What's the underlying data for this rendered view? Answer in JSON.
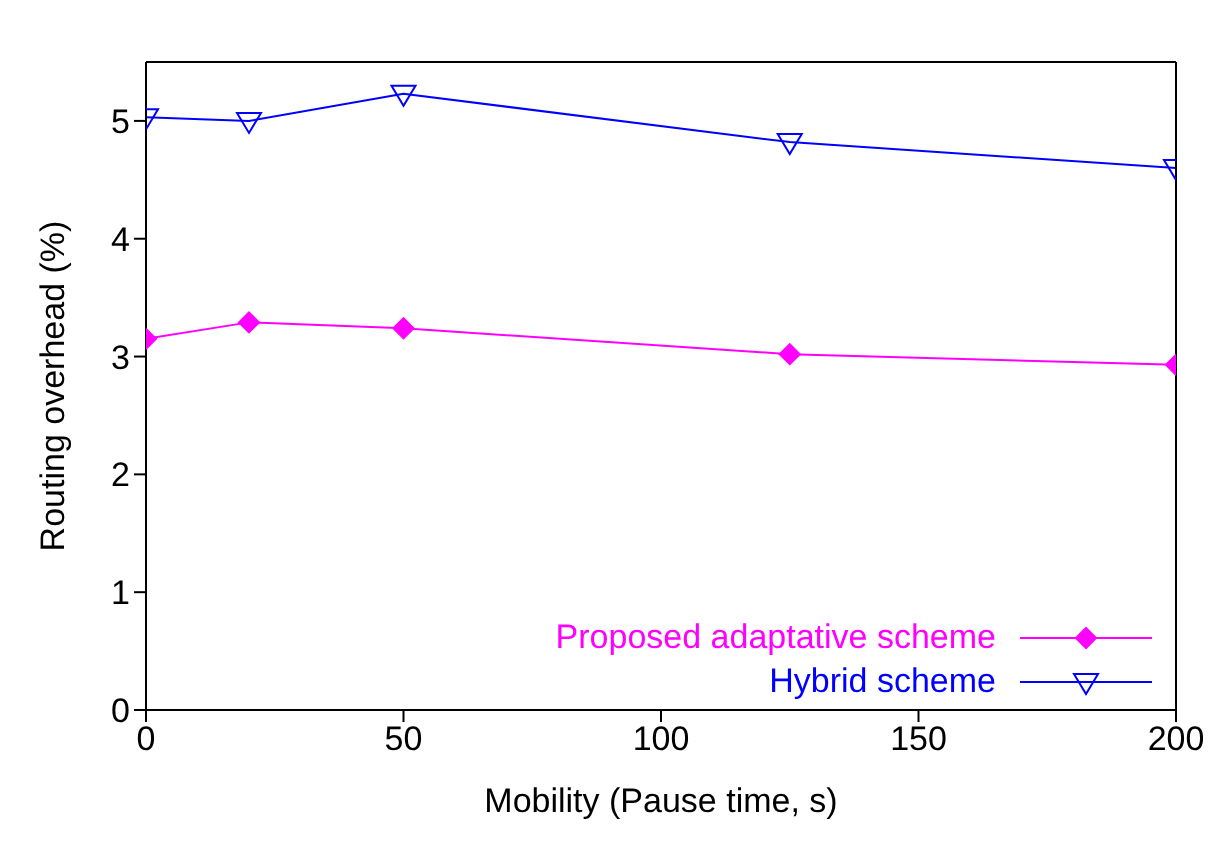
{
  "chart_data": {
    "type": "line",
    "xlabel": "Mobility (Pause time, s)",
    "ylabel": "Routing overhead (%)",
    "x": [
      0,
      20,
      50,
      125,
      200
    ],
    "series": [
      {
        "name": "Proposed adaptative scheme",
        "color": "#ff00ff",
        "marker": "diamond",
        "values": [
          3.15,
          3.29,
          3.24,
          3.02,
          2.93
        ]
      },
      {
        "name": "Hybrid scheme",
        "color": "#0000ff",
        "marker": "triangle",
        "values": [
          5.03,
          5.0,
          5.23,
          4.82,
          4.6
        ]
      }
    ],
    "xlim": [
      0,
      200
    ],
    "xticks": [
      0,
      50,
      100,
      150,
      200
    ],
    "ylim": [
      0,
      5.5
    ],
    "yticks": [
      0,
      1,
      2,
      3,
      4,
      5
    ],
    "grid": false,
    "legend": "bottom right"
  }
}
